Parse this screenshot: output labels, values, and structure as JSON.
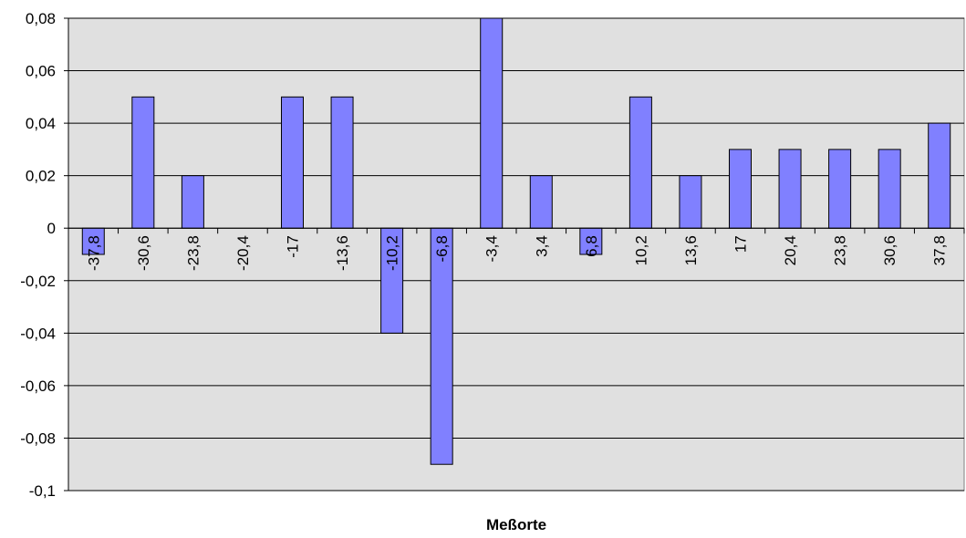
{
  "chart_data": {
    "type": "bar",
    "title": "",
    "xlabel": "Meßorte",
    "ylabel": "",
    "categories": [
      "-37,8",
      "-30,6",
      "-23,8",
      "-20,4",
      "-17",
      "-13,6",
      "-10,2",
      "-6,8",
      "-3,4",
      "3,4",
      "6,8",
      "10,2",
      "13,6",
      "17",
      "20,4",
      "23,8",
      "30,6",
      "37,8"
    ],
    "values": [
      -0.01,
      0.05,
      0.02,
      0,
      0.05,
      0.05,
      -0.04,
      -0.09,
      0.08,
      0.02,
      -0.01,
      0.05,
      0.02,
      0.03,
      0.03,
      0.03,
      0.03,
      0.04
    ],
    "ylim": [
      -0.1,
      0.08
    ],
    "yticks": [
      0.08,
      0.06,
      0.04,
      0.02,
      0,
      -0.02,
      -0.04,
      -0.06,
      -0.08,
      -0.1
    ],
    "ytick_labels": [
      "0,08",
      "0,06",
      "0,04",
      "0,02",
      "0",
      "-0,02",
      "-0,04",
      "-0,06",
      "-0,08",
      "-0,1"
    ],
    "grid": true,
    "legend": "none",
    "colors": {
      "bar_fill": "#8080ff",
      "bar_stroke": "#000000",
      "plot_background": "#e0e0e0",
      "grid": "#000000"
    }
  }
}
